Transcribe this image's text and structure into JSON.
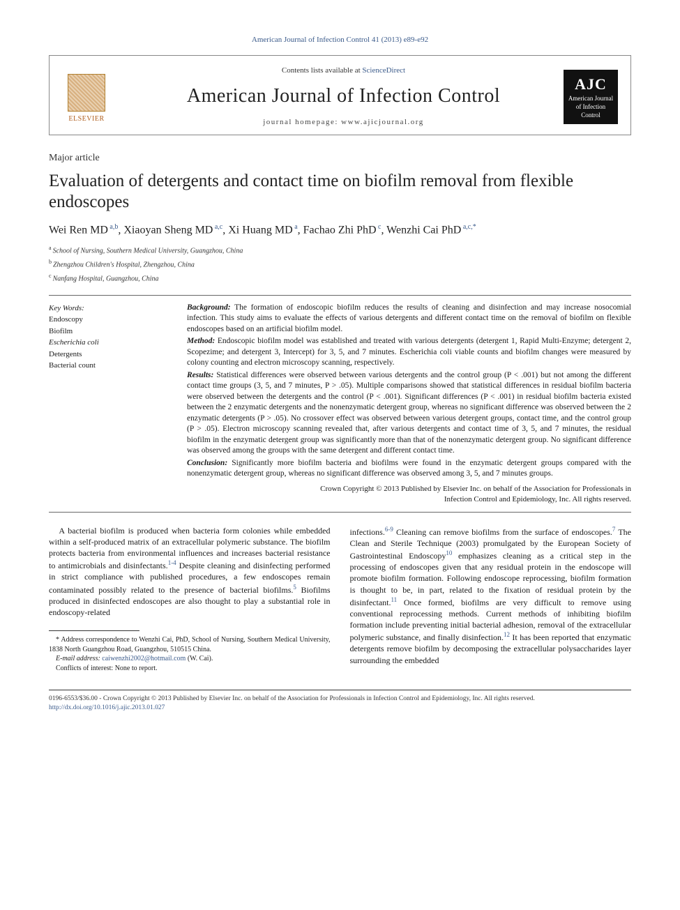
{
  "citation_line": "American Journal of Infection Control 41 (2013) e89-e92",
  "masthead": {
    "contents_prefix": "Contents lists available at ",
    "contents_link": "ScienceDirect",
    "journal_title": "American Journal of Infection Control",
    "homepage_prefix": "journal homepage: ",
    "homepage_url": "www.ajicjournal.org",
    "elsevier_label": "ELSEVIER",
    "ajic_big": "AJC",
    "ajic_small": "American Journal of Infection Control"
  },
  "article_type": "Major article",
  "title": "Evaluation of detergents and contact time on biofilm removal from flexible endoscopes",
  "authors_html": "Wei Ren MD|a,b|, Xiaoyan Sheng MD|a,c|, Xi Huang MD|a|, Fachao Zhi PhD|c|, Wenzhi Cai PhD|a,c,*|",
  "affiliations": [
    {
      "sup": "a",
      "text": "School of Nursing, Southern Medical University, Guangzhou, China"
    },
    {
      "sup": "b",
      "text": "Zhengzhou Children's Hospital, Zhengzhou, China"
    },
    {
      "sup": "c",
      "text": "Nanfang Hospital, Guangzhou, China"
    }
  ],
  "keywords": {
    "header": "Key Words:",
    "items": [
      "Endoscopy",
      "Biofilm",
      "Escherichia coli",
      "Detergents",
      "Bacterial count"
    ]
  },
  "abstract": {
    "background_label": "Background:",
    "background": " The formation of endoscopic biofilm reduces the results of cleaning and disinfection and may increase nosocomial infection. This study aims to evaluate the effects of various detergents and different contact time on the removal of biofilm on flexible endoscopes based on an artificial biofilm model.",
    "method_label": "Method:",
    "method": " Endoscopic biofilm model was established and treated with various detergents (detergent 1, Rapid Multi-Enzyme; detergent 2, Scopezime; and detergent 3, Intercept) for 3, 5, and 7 minutes. Escherichia coli viable counts and biofilm changes were measured by colony counting and electron microscopy scanning, respectively.",
    "results_label": "Results:",
    "results": " Statistical differences were observed between various detergents and the control group (P < .001) but not among the different contact time groups (3, 5, and 7 minutes, P > .05). Multiple comparisons showed that statistical differences in residual biofilm bacteria were observed between the detergents and the control (P < .001). Significant differences (P < .001) in residual biofilm bacteria existed between the 2 enzymatic detergents and the nonenzymatic detergent group, whereas no significant difference was observed between the 2 enzymatic detergents (P > .05). No crossover effect was observed between various detergent groups, contact time, and the control group (P > .05). Electron microscopy scanning revealed that, after various detergents and contact time of 3, 5, and 7 minutes, the residual biofilm in the enzymatic detergent group was significantly more than that of the nonenzymatic detergent group. No significant difference was observed among the groups with the same detergent and different contact time.",
    "conclusion_label": "Conclusion:",
    "conclusion": " Significantly more biofilm bacteria and biofilms were found in the enzymatic detergent groups compared with the nonenzymatic detergent group, whereas no significant difference was observed among 3, 5, and 7 minutes groups.",
    "copyright1": "Crown Copyright © 2013 Published by Elsevier Inc. on behalf of the Association for Professionals in",
    "copyright2": "Infection Control and Epidemiology, Inc. All rights reserved."
  },
  "body": {
    "col1": "A bacterial biofilm is produced when bacteria form colonies while embedded within a self-produced matrix of an extracellular polymeric substance. The biofilm protects bacteria from environmental influences and increases bacterial resistance to antimicrobials and disinfectants.|1-4| Despite cleaning and disinfecting performed in strict compliance with published procedures, a few endoscopes remain contaminated possibly related to the presence of bacterial biofilms.|5| Biofilms produced in disinfected endoscopes are also thought to play a substantial role in endoscopy-related",
    "col2": "infections.|6-9| Cleaning can remove biofilms from the surface of endoscopes.|7| The Clean and Sterile Technique (2003) promulgated by the European Society of Gastrointestinal Endoscopy|10| emphasizes cleaning as a critical step in the processing of endoscopes given that any residual protein in the endoscope will promote biofilm formation. Following endoscope reprocessing, biofilm formation is thought to be, in part, related to the fixation of residual protein by the disinfectant.|11| Once formed, biofilms are very difficult to remove using conventional reprocessing methods. Current methods of inhibiting biofilm formation include preventing initial bacterial adhesion, removal of the extracellular polymeric substance, and finally disinfection.|12| It has been reported that enzymatic detergents remove biofilm by decomposing the extracellular polysaccharides layer surrounding the embedded"
  },
  "footnotes": {
    "corr": "*    Address correspondence to Wenzhi Cai, PhD, School of Nursing, Southern Medical University, 1838 North Guangzhou Road, Guangzhou, 510515 China.",
    "email_label": "E-mail address: ",
    "email_value": "caiwenzhi2002@hotmail.com",
    "email_suffix": " (W. Cai).",
    "conflicts": "Conflicts of interest: None to report."
  },
  "bottom": {
    "line1": "0196-6553/$36.00 - Crown Copyright © 2013 Published by Elsevier Inc. on behalf of the Association for Professionals in Infection Control and Epidemiology, Inc. All rights reserved.",
    "doi": "http://dx.doi.org/10.1016/j.ajic.2013.01.027"
  },
  "colors": {
    "link": "#3a5a8a",
    "text": "#1a1a1a",
    "elsevier_orange": "#b06020",
    "background": "#ffffff"
  },
  "typography": {
    "journal_title_fontsize": 28,
    "paper_title_fontsize": 25,
    "authors_fontsize": 16,
    "body_fontsize": 12,
    "abstract_fontsize": 11.5,
    "footnote_fontsize": 10
  }
}
